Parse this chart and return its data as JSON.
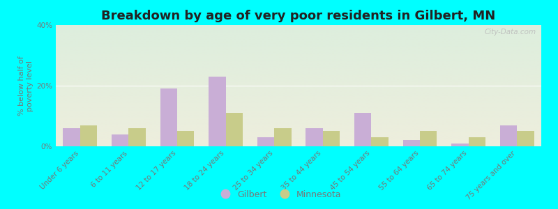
{
  "title": "Breakdown by age of very poor residents in Gilbert, MN",
  "ylabel": "% below half of\npoverty level",
  "categories": [
    "Under 6 years",
    "6 to 11 years",
    "12 to 17 years",
    "18 to 24 years",
    "25 to 34 years",
    "35 to 44 years",
    "45 to 54 years",
    "55 to 64 years",
    "65 to 74 years",
    "75 years and over"
  ],
  "gilbert_values": [
    6,
    4,
    19,
    23,
    3,
    6,
    11,
    2,
    1,
    7
  ],
  "minnesota_values": [
    7,
    6,
    5,
    11,
    6,
    5,
    3,
    5,
    3,
    5
  ],
  "gilbert_color": "#c9aed6",
  "minnesota_color": "#c8cc8a",
  "bar_width": 0.35,
  "ylim": [
    0,
    40
  ],
  "yticks": [
    0,
    20,
    40
  ],
  "ytick_labels": [
    "0%",
    "20%",
    "40%"
  ],
  "background_outer": "#00ffff",
  "bg_color_top": "#ddeedd",
  "bg_color_bottom": "#eeeedd",
  "title_fontsize": 13,
  "axis_label_fontsize": 8,
  "tick_label_fontsize": 7.5,
  "legend_labels": [
    "Gilbert",
    "Minnesota"
  ],
  "watermark": "City-Data.com",
  "tick_color": "#777777",
  "title_color": "#222222"
}
